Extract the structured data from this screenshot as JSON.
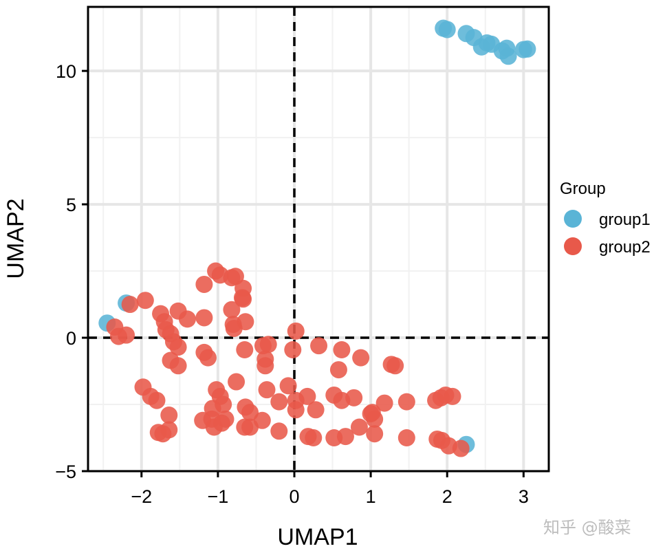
{
  "chart_data": {
    "type": "scatter",
    "xlabel": "UMAP1",
    "ylabel": "UMAP2",
    "xlim": [
      -2.7,
      3.33
    ],
    "ylim": [
      -5.0,
      12.4
    ],
    "xticks": [
      -2,
      -1,
      0,
      1,
      2,
      3
    ],
    "yticks": [
      -5,
      0,
      5,
      10
    ],
    "xtick_labels": [
      "−2",
      "−1",
      "0",
      "1",
      "2",
      "3"
    ],
    "ytick_labels": [
      "−5",
      "0",
      "5",
      "10"
    ],
    "reference_lines": {
      "x": 0,
      "y": 0,
      "style": "dashed"
    },
    "grid": true,
    "legend": {
      "title": "Group",
      "position": "right",
      "entries": [
        {
          "label": "group1",
          "color": "#5ab4d6"
        },
        {
          "label": "group2",
          "color": "#e8594a"
        }
      ]
    },
    "series": [
      {
        "name": "group1",
        "color": "#5ab4d6",
        "points": [
          [
            1.95,
            11.6
          ],
          [
            2.0,
            11.55
          ],
          [
            2.25,
            11.4
          ],
          [
            2.35,
            11.25
          ],
          [
            2.45,
            10.9
          ],
          [
            2.52,
            11.05
          ],
          [
            2.58,
            11.0
          ],
          [
            2.72,
            10.75
          ],
          [
            2.78,
            10.85
          ],
          [
            2.8,
            10.55
          ],
          [
            3.0,
            10.8
          ],
          [
            3.05,
            10.82
          ],
          [
            -2.45,
            0.55
          ],
          [
            -2.2,
            1.3
          ],
          [
            2.25,
            -4.0
          ]
        ]
      },
      {
        "name": "group2",
        "color": "#e8594a",
        "points": [
          [
            -2.35,
            0.4
          ],
          [
            -2.3,
            0.05
          ],
          [
            -2.2,
            0.1
          ],
          [
            -2.15,
            1.25
          ],
          [
            -1.95,
            1.4
          ],
          [
            -1.75,
            0.9
          ],
          [
            -1.7,
            0.6
          ],
          [
            -1.68,
            0.3
          ],
          [
            -1.62,
            0.15
          ],
          [
            -1.52,
            1.0
          ],
          [
            -1.4,
            0.7
          ],
          [
            -1.58,
            -0.15
          ],
          [
            -1.52,
            -0.35
          ],
          [
            -1.62,
            -0.85
          ],
          [
            -1.52,
            -1.05
          ],
          [
            -1.18,
            0.75
          ],
          [
            -1.18,
            2.0
          ],
          [
            -1.03,
            2.5
          ],
          [
            -0.97,
            2.35
          ],
          [
            -0.82,
            2.25
          ],
          [
            -0.77,
            2.3
          ],
          [
            -0.67,
            1.85
          ],
          [
            -0.68,
            1.5
          ],
          [
            -0.67,
            1.45
          ],
          [
            -0.82,
            1.05
          ],
          [
            -0.8,
            0.5
          ],
          [
            -0.79,
            0.35
          ],
          [
            -0.64,
            0.6
          ],
          [
            -0.65,
            -0.45
          ],
          [
            -0.41,
            -0.3
          ],
          [
            -0.34,
            -0.25
          ],
          [
            -0.38,
            -0.8
          ],
          [
            -0.38,
            -1.05
          ],
          [
            -1.18,
            -0.55
          ],
          [
            -1.13,
            -0.75
          ],
          [
            -1.98,
            -1.85
          ],
          [
            -1.88,
            -2.2
          ],
          [
            -1.8,
            -2.35
          ],
          [
            -1.64,
            -2.9
          ],
          [
            -1.78,
            -3.55
          ],
          [
            -1.72,
            -3.6
          ],
          [
            -1.64,
            -3.45
          ],
          [
            -1.02,
            -1.95
          ],
          [
            -0.97,
            -2.2
          ],
          [
            -0.93,
            -2.5
          ],
          [
            -1.07,
            -2.65
          ],
          [
            -1.2,
            -3.1
          ],
          [
            -1.08,
            -3.05
          ],
          [
            -1.05,
            -3.35
          ],
          [
            -0.95,
            -3.2
          ],
          [
            -0.9,
            -3.05
          ],
          [
            -0.76,
            -1.65
          ],
          [
            -0.64,
            -2.6
          ],
          [
            -0.58,
            -2.8
          ],
          [
            -0.65,
            -3.35
          ],
          [
            -0.58,
            -3.35
          ],
          [
            -0.42,
            -3.1
          ],
          [
            -0.36,
            -1.95
          ],
          [
            -0.2,
            -2.4
          ],
          [
            -0.08,
            -1.8
          ],
          [
            -0.2,
            -3.5
          ],
          [
            0.02,
            -2.35
          ],
          [
            0.02,
            -2.7
          ],
          [
            0.02,
            0.25
          ],
          [
            -0.02,
            -0.45
          ],
          [
            0.17,
            -2.2
          ],
          [
            0.28,
            -2.7
          ],
          [
            0.18,
            -3.7
          ],
          [
            0.25,
            -3.75
          ],
          [
            0.32,
            -0.3
          ],
          [
            0.62,
            -0.45
          ],
          [
            0.58,
            -1.2
          ],
          [
            0.52,
            -2.15
          ],
          [
            0.62,
            -2.35
          ],
          [
            0.78,
            -2.25
          ],
          [
            0.52,
            -3.75
          ],
          [
            0.67,
            -3.7
          ],
          [
            0.85,
            -3.35
          ],
          [
            0.87,
            -0.75
          ],
          [
            1.0,
            -2.85
          ],
          [
            1.05,
            -3.05
          ],
          [
            1.02,
            -2.8
          ],
          [
            1.05,
            -3.6
          ],
          [
            1.18,
            -2.45
          ],
          [
            1.27,
            -1.0
          ],
          [
            1.32,
            -1.05
          ],
          [
            1.47,
            -2.4
          ],
          [
            1.47,
            -3.75
          ],
          [
            1.85,
            -2.35
          ],
          [
            1.92,
            -2.25
          ],
          [
            1.98,
            -2.15
          ],
          [
            2.07,
            -2.2
          ],
          [
            1.87,
            -3.8
          ],
          [
            1.93,
            -3.85
          ],
          [
            2.02,
            -4.05
          ],
          [
            2.18,
            -4.15
          ]
        ]
      }
    ]
  },
  "watermark": "知乎 @酸菜"
}
